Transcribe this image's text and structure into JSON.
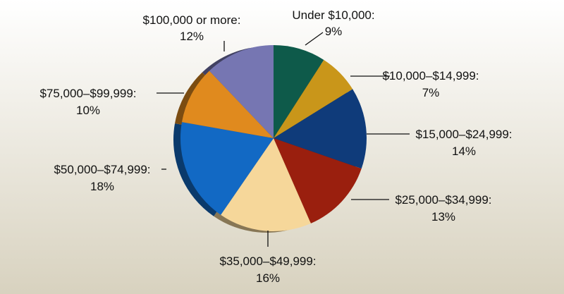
{
  "chart_data": {
    "type": "pie",
    "title": "",
    "start_angle_deg": 0,
    "direction": "clockwise",
    "background": {
      "top": "#ffffff",
      "bottom": "#d8d2bf"
    },
    "slices": [
      {
        "label": "Under $10,000:",
        "value": 9,
        "value_label": "9%",
        "color": "#0e5a4a"
      },
      {
        "label": "$10,000–$14,999:",
        "value": 7,
        "value_label": "7%",
        "color": "#c9961a"
      },
      {
        "label": "$15,000–$24,999:",
        "value": 14,
        "value_label": "14%",
        "color": "#0f3b7a"
      },
      {
        "label": "$25,000–$34,999:",
        "value": 13,
        "value_label": "13%",
        "color": "#9a1f0e"
      },
      {
        "label": "$35,000–$49,999:",
        "value": 16,
        "value_label": "16%",
        "color": "#f6d79a"
      },
      {
        "label": "$50,000–$74,999:",
        "value": 18,
        "value_label": "18%",
        "color": "#1269c4"
      },
      {
        "label": "$75,000–$99,999:",
        "value": 10,
        "value_label": "10%",
        "color": "#e08a1e"
      },
      {
        "label": "$100,000 or more:",
        "value": 12,
        "value_label": "12%",
        "color": "#7676b2"
      }
    ]
  }
}
